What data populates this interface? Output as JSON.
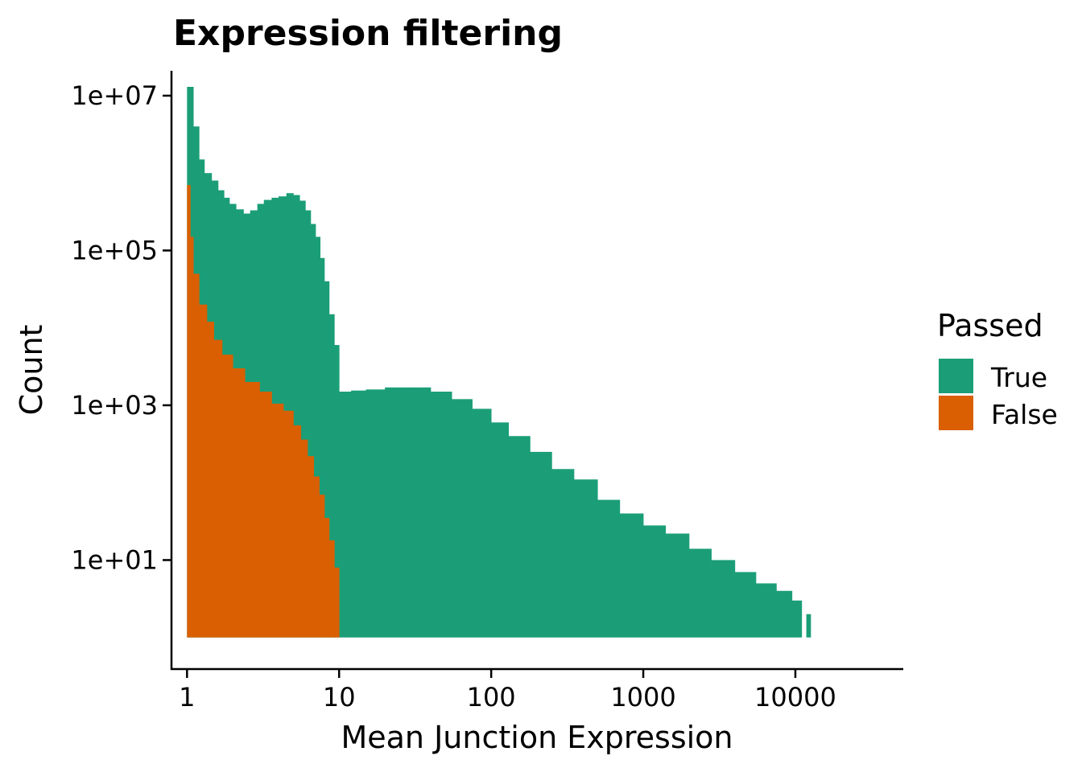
{
  "chart_data": {
    "type": "histogram",
    "title": "Expression filtering",
    "xlabel": "Mean Junction Expression",
    "ylabel": "Count",
    "x_scale": "log10",
    "y_scale": "log10",
    "xlim": [
      0.8,
      50000
    ],
    "ylim": [
      0.4,
      20000000
    ],
    "bar_baseline": 1,
    "x_ticks": [
      {
        "value": 1,
        "label": "1"
      },
      {
        "value": 10,
        "label": "10"
      },
      {
        "value": 100,
        "label": "100"
      },
      {
        "value": 1000,
        "label": "1000"
      },
      {
        "value": 10000,
        "label": "10000"
      }
    ],
    "y_ticks": [
      {
        "value": 10,
        "label": "1e+01"
      },
      {
        "value": 1000,
        "label": "1e+03"
      },
      {
        "value": 100000,
        "label": "1e+05"
      },
      {
        "value": 10000000,
        "label": "1e+07"
      }
    ],
    "grid": false,
    "legend": {
      "title": "Passed",
      "position": "right"
    },
    "series": [
      {
        "name": "True",
        "color": "#1B9E77",
        "bins": [
          [
            1.0,
            1.1,
            13000000
          ],
          [
            1.1,
            1.2,
            4000000
          ],
          [
            1.2,
            1.3,
            1500000
          ],
          [
            1.3,
            1.45,
            1000000
          ],
          [
            1.45,
            1.6,
            800000
          ],
          [
            1.6,
            1.75,
            600000
          ],
          [
            1.75,
            1.9,
            480000
          ],
          [
            1.9,
            2.1,
            400000
          ],
          [
            2.1,
            2.35,
            340000
          ],
          [
            2.35,
            2.6,
            300000
          ],
          [
            2.6,
            2.9,
            330000
          ],
          [
            2.9,
            3.2,
            400000
          ],
          [
            3.2,
            3.6,
            450000
          ],
          [
            3.6,
            4.0,
            480000
          ],
          [
            4.0,
            4.5,
            500000
          ],
          [
            4.5,
            5.0,
            550000
          ],
          [
            5.0,
            5.5,
            520000
          ],
          [
            5.5,
            6.0,
            440000
          ],
          [
            6.0,
            6.5,
            330000
          ],
          [
            6.5,
            7.0,
            220000
          ],
          [
            7.0,
            7.5,
            150000
          ],
          [
            7.5,
            8.0,
            80000
          ],
          [
            8.0,
            8.6,
            40000
          ],
          [
            8.6,
            9.3,
            15000
          ],
          [
            9.3,
            10.0,
            6000
          ],
          [
            10.0,
            12.0,
            1500
          ],
          [
            12.0,
            15.0,
            1550
          ],
          [
            15.0,
            20.0,
            1600
          ],
          [
            20.0,
            30.0,
            1700
          ],
          [
            30.0,
            40.0,
            1700
          ],
          [
            40.0,
            55.0,
            1500
          ],
          [
            55.0,
            75.0,
            1200
          ],
          [
            75.0,
            100.0,
            900
          ],
          [
            100.0,
            130.0,
            600
          ],
          [
            130.0,
            180.0,
            400
          ],
          [
            180.0,
            250.0,
            250
          ],
          [
            250.0,
            350.0,
            150
          ],
          [
            350.0,
            500.0,
            110
          ],
          [
            500.0,
            700.0,
            60
          ],
          [
            700.0,
            1000.0,
            40
          ],
          [
            1000.0,
            1400.0,
            28
          ],
          [
            1400.0,
            2000.0,
            22
          ],
          [
            2000.0,
            2800.0,
            14
          ],
          [
            2800.0,
            4000.0,
            10
          ],
          [
            4000.0,
            5500.0,
            7
          ],
          [
            5500.0,
            7500.0,
            5
          ],
          [
            7500.0,
            9500.0,
            4
          ],
          [
            9500.0,
            11000.0,
            3
          ],
          [
            11800.0,
            12600.0,
            2
          ]
        ]
      },
      {
        "name": "False",
        "color": "#D95F02",
        "bins": [
          [
            1.0,
            1.05,
            700000
          ],
          [
            1.05,
            1.1,
            150000
          ],
          [
            1.1,
            1.2,
            50000
          ],
          [
            1.2,
            1.35,
            20000
          ],
          [
            1.35,
            1.5,
            12000
          ],
          [
            1.5,
            1.7,
            7000
          ],
          [
            1.7,
            2.0,
            4500
          ],
          [
            2.0,
            2.4,
            3000
          ],
          [
            2.4,
            3.0,
            2000
          ],
          [
            3.0,
            3.6,
            1500
          ],
          [
            3.6,
            4.3,
            1050
          ],
          [
            4.3,
            5.0,
            850
          ],
          [
            5.0,
            5.6,
            550
          ],
          [
            5.6,
            6.2,
            360
          ],
          [
            6.2,
            6.8,
            220
          ],
          [
            6.8,
            7.4,
            120
          ],
          [
            7.4,
            8.0,
            70
          ],
          [
            8.0,
            8.6,
            35
          ],
          [
            8.6,
            9.3,
            18
          ],
          [
            9.3,
            10.0,
            8
          ]
        ]
      }
    ]
  }
}
